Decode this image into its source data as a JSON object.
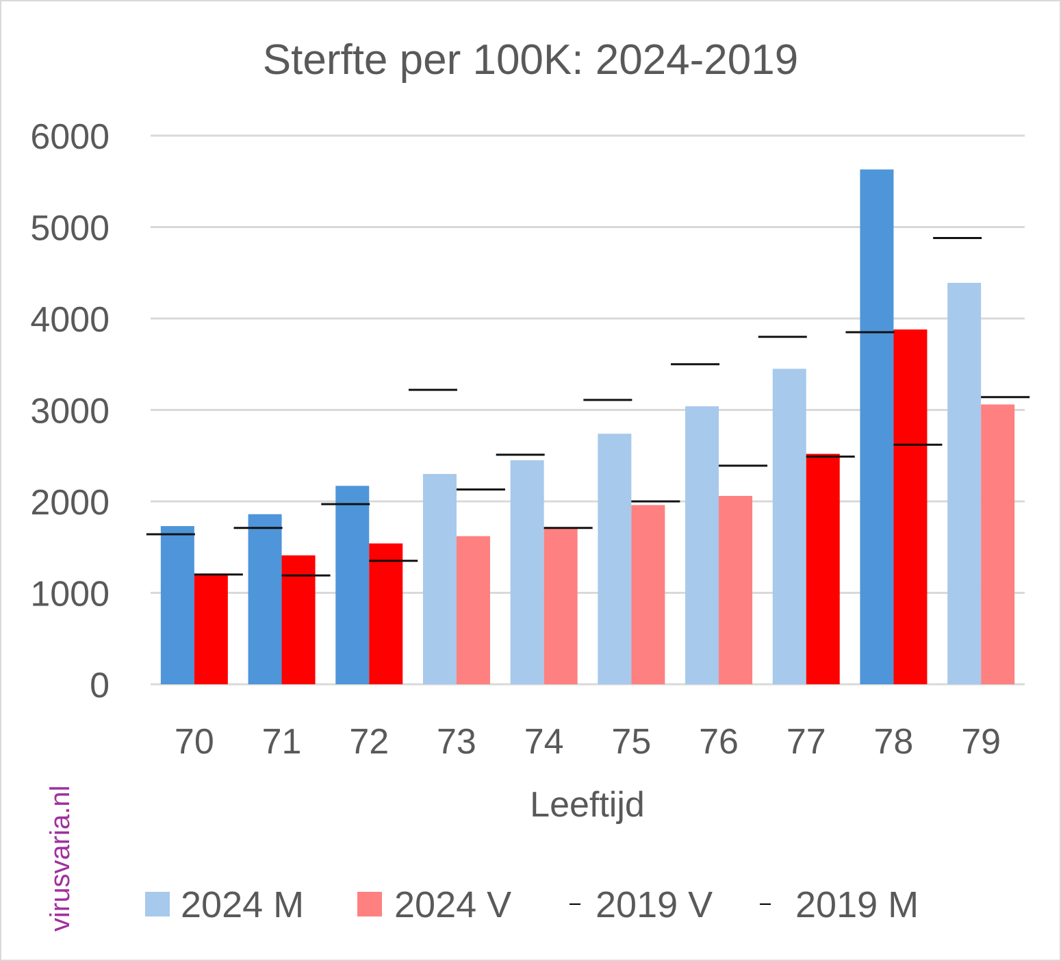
{
  "watermark": "virusvaria.nl",
  "chart_data": {
    "type": "bar",
    "title": "Sterfte per 100K: 2024-2019",
    "xlabel": "Leeftijd",
    "ylabel": "",
    "ylim": [
      0,
      6000
    ],
    "yticks": [
      0,
      1000,
      2000,
      3000,
      4000,
      5000,
      6000
    ],
    "grid": true,
    "legend_position": "bottom",
    "categories": [
      "70",
      "71",
      "72",
      "73",
      "74",
      "75",
      "76",
      "77",
      "78",
      "79"
    ],
    "series": [
      {
        "name": "2024 M",
        "kind": "bar",
        "values": [
          1730,
          1860,
          2170,
          2300,
          2450,
          2740,
          3040,
          3450,
          5630,
          4390
        ],
        "color": "#a7c9eb",
        "highlight_color": "#4f95d9"
      },
      {
        "name": "2024 V",
        "kind": "bar",
        "values": [
          1210,
          1410,
          1540,
          1620,
          1710,
          1960,
          2060,
          2520,
          3880,
          3060
        ],
        "color": "#ff8080",
        "highlight_color": "#ff0000"
      },
      {
        "name": "2019 V",
        "kind": "marker",
        "values": [
          1200,
          1190,
          1350,
          2130,
          1710,
          2000,
          2390,
          2490,
          2620,
          3140
        ],
        "color": "#000000"
      },
      {
        "name": "2019 M",
        "kind": "marker",
        "values": [
          1640,
          1710,
          1970,
          3220,
          2510,
          3110,
          3500,
          3800,
          3850,
          4880
        ],
        "color": "#000000"
      }
    ],
    "legend": [
      {
        "label": "2024 M",
        "swatch": "#a7c9eb",
        "type": "box"
      },
      {
        "label": "2024 V",
        "swatch": "#ff8080",
        "type": "box"
      },
      {
        "label": "2019 V",
        "swatch": "#000000",
        "type": "dash"
      },
      {
        "label": "2019 M",
        "swatch": "#000000",
        "type": "dash"
      }
    ],
    "note": "2024 bars drawn in darker colour when 2024 value exceeds the 2019 value"
  }
}
